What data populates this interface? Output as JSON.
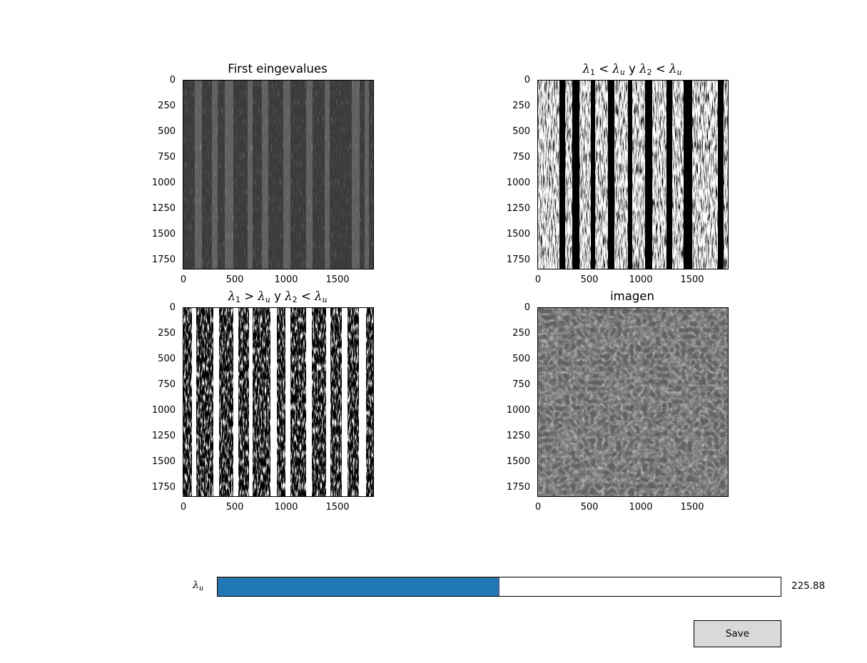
{
  "panels": [
    {
      "id": "first-eigenvalues",
      "title": "First eingevalues",
      "title_math": false,
      "style": "grayscale-stripes",
      "yticks": [
        "0",
        "250",
        "500",
        "750",
        "1000",
        "1250",
        "1500",
        "1750"
      ],
      "xticks": [
        "0",
        "500",
        "1000",
        "1500"
      ]
    },
    {
      "id": "lambda-both-below",
      "title_parts": {
        "l1": "λ",
        "s1": "1",
        "op1": " < ",
        "l2": "λ",
        "s2": "u",
        "mid": " y ",
        "l3": "λ",
        "s3": "2",
        "op2": " < ",
        "l4": "λ",
        "s4": "u"
      },
      "title_math": true,
      "style": "binary-sparse",
      "yticks": [
        "0",
        "250",
        "500",
        "750",
        "1000",
        "1250",
        "1500",
        "1750"
      ],
      "xticks": [
        "0",
        "500",
        "1000",
        "1500"
      ]
    },
    {
      "id": "lambda1-above",
      "title_parts": {
        "l1": "λ",
        "s1": "1",
        "op1": " > ",
        "l2": "λ",
        "s2": "u",
        "mid": " y ",
        "l3": "λ",
        "s3": "2",
        "op2": " < ",
        "l4": "λ",
        "s4": "u"
      },
      "title_math": true,
      "style": "binary-dense",
      "yticks": [
        "0",
        "250",
        "500",
        "750",
        "1000",
        "1250",
        "1500",
        "1750"
      ],
      "xticks": [
        "0",
        "500",
        "1000",
        "1500"
      ]
    },
    {
      "id": "imagen",
      "title": "imagen",
      "title_math": false,
      "style": "granulation",
      "yticks": [
        "0",
        "250",
        "500",
        "750",
        "1000",
        "1250",
        "1500",
        "1750"
      ],
      "xticks": [
        "0",
        "500",
        "1000",
        "1500"
      ]
    }
  ],
  "slider": {
    "label_symbol": "λ",
    "label_sub": "u",
    "value_text": "225.88",
    "fraction": 0.499
  },
  "save_label": "Save",
  "colors": {
    "slider_fill": "#1f77b4",
    "slider_handle": "#d62728",
    "button_bg": "#d9d9d9"
  }
}
